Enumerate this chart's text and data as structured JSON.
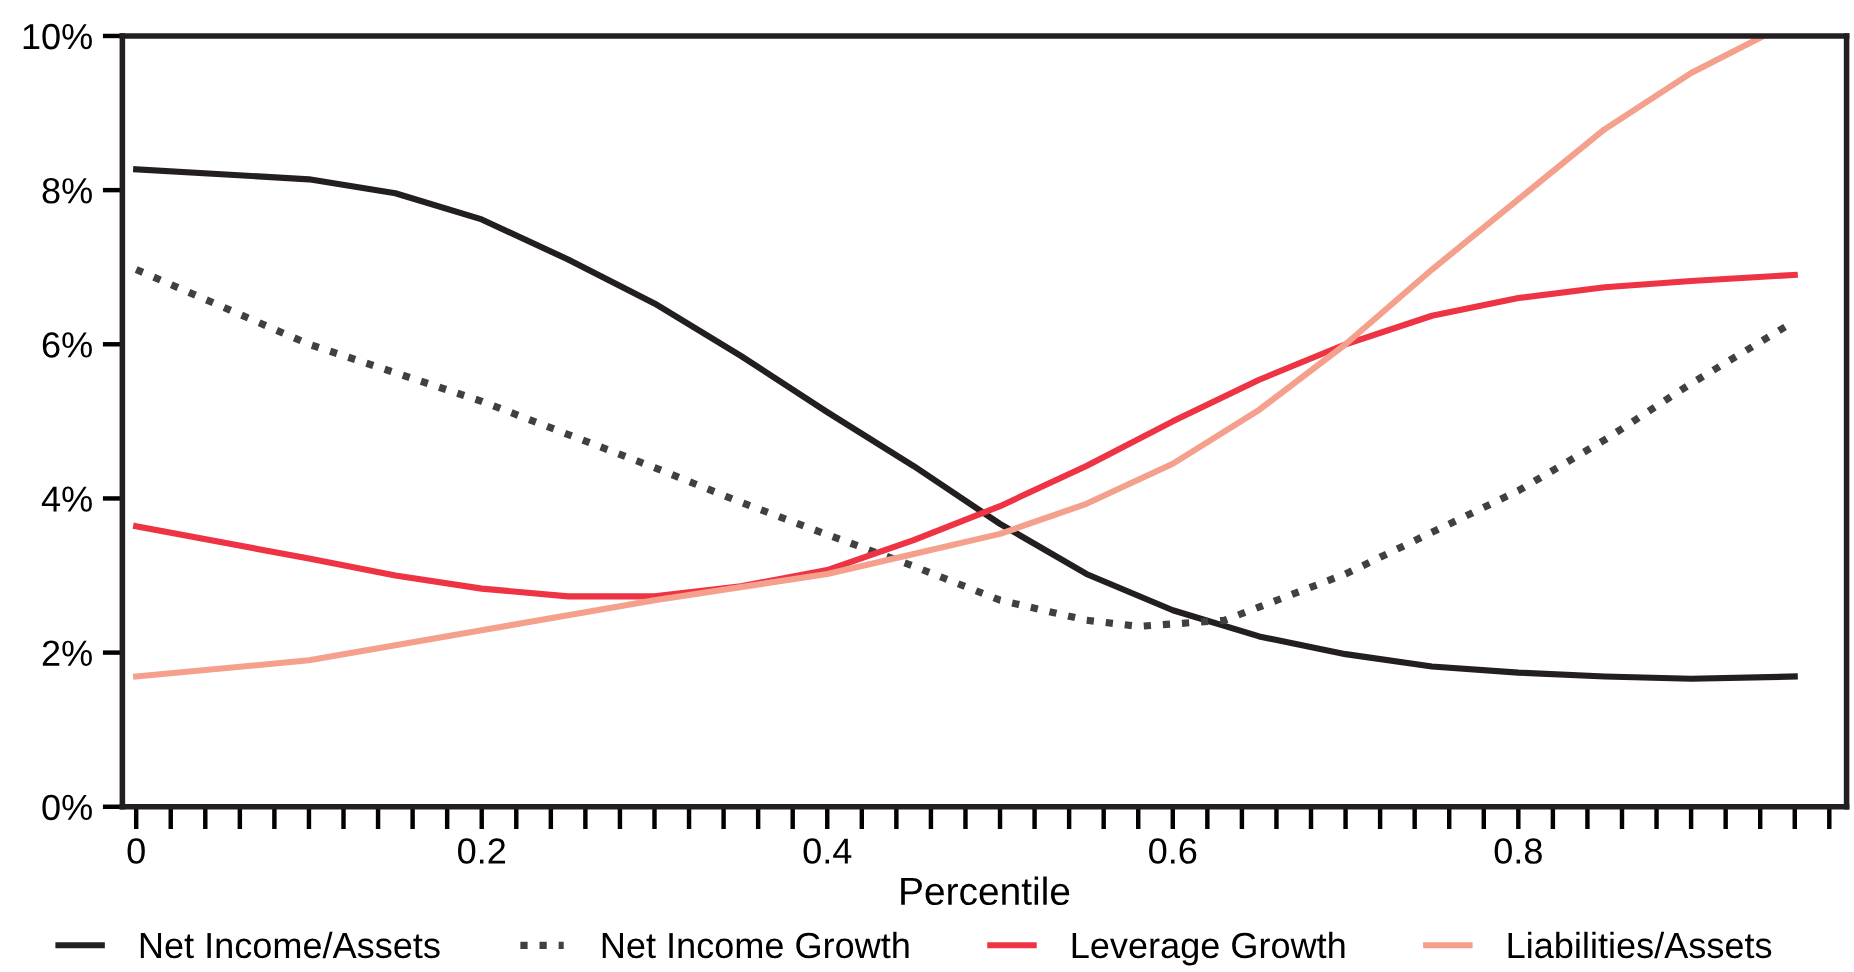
{
  "chart_data": {
    "type": "line",
    "xlabel": "Percentile",
    "xlim": [
      -0.008,
      0.99
    ],
    "ylim": [
      0,
      10
    ],
    "xticks": [
      0,
      {
        "value": 0.02,
        "label": null
      },
      {
        "value": 0.04,
        "label": null
      },
      {
        "value": 0.06,
        "label": null
      },
      {
        "value": 0.08,
        "label": null
      },
      {
        "value": 0.1,
        "label": null
      },
      {
        "value": 0.12,
        "label": null
      },
      {
        "value": 0.14,
        "label": null
      },
      {
        "value": 0.16,
        "label": null
      },
      {
        "value": 0.18,
        "label": null
      },
      0.2,
      {
        "value": 0.22,
        "label": null
      },
      {
        "value": 0.24,
        "label": null
      },
      {
        "value": 0.26,
        "label": null
      },
      {
        "value": 0.28,
        "label": null
      },
      {
        "value": 0.3,
        "label": null
      },
      {
        "value": 0.32,
        "label": null
      },
      {
        "value": 0.34,
        "label": null
      },
      {
        "value": 0.36,
        "label": null
      },
      {
        "value": 0.38,
        "label": null
      },
      0.4,
      {
        "value": 0.42,
        "label": null
      },
      {
        "value": 0.44,
        "label": null
      },
      {
        "value": 0.46,
        "label": null
      },
      {
        "value": 0.48,
        "label": null
      },
      {
        "value": 0.5,
        "label": null
      },
      {
        "value": 0.52,
        "label": null
      },
      {
        "value": 0.54,
        "label": null
      },
      {
        "value": 0.56,
        "label": null
      },
      {
        "value": 0.58,
        "label": null
      },
      0.6,
      {
        "value": 0.62,
        "label": null
      },
      {
        "value": 0.64,
        "label": null
      },
      {
        "value": 0.66,
        "label": null
      },
      {
        "value": 0.68,
        "label": null
      },
      {
        "value": 0.7,
        "label": null
      },
      {
        "value": 0.72,
        "label": null
      },
      {
        "value": 0.74,
        "label": null
      },
      {
        "value": 0.76,
        "label": null
      },
      {
        "value": 0.78,
        "label": null
      },
      0.8,
      {
        "value": 0.82,
        "label": null
      },
      {
        "value": 0.84,
        "label": null
      },
      {
        "value": 0.86,
        "label": null
      },
      {
        "value": 0.88,
        "label": null
      },
      {
        "value": 0.9,
        "label": null
      },
      {
        "value": 0.92,
        "label": null
      },
      {
        "value": 0.94,
        "label": null
      },
      {
        "value": 0.96,
        "label": null
      },
      {
        "value": 0.98,
        "label": null
      }
    ],
    "yticks": [
      {
        "value": 0,
        "label": "0%"
      },
      {
        "value": 2,
        "label": "2%"
      },
      {
        "value": 4,
        "label": "4%"
      },
      {
        "value": 6,
        "label": "6%"
      },
      {
        "value": 8,
        "label": "8%"
      },
      {
        "value": 10,
        "label": "10%"
      }
    ],
    "grid": false,
    "legend": "bottom",
    "marker": "none",
    "series": [
      {
        "name": "Net Income/Assets",
        "color": "#231f20",
        "line_style": "solid",
        "x": [
          0,
          0.1,
          0.15,
          0.2,
          0.25,
          0.3,
          0.35,
          0.4,
          0.45,
          0.5,
          0.55,
          0.6,
          0.65,
          0.7,
          0.75,
          0.8,
          0.85,
          0.9,
          0.96
        ],
        "values": [
          8.27,
          8.14,
          7.96,
          7.62,
          7.1,
          6.53,
          5.85,
          5.12,
          4.42,
          3.67,
          3.02,
          2.55,
          2.21,
          1.98,
          1.82,
          1.74,
          1.69,
          1.66,
          1.69
        ]
      },
      {
        "name": "Net Income Growth",
        "color": "#404040",
        "line_style": "dotted",
        "x": [
          0,
          0.1,
          0.2,
          0.3,
          0.35,
          0.4,
          0.45,
          0.5,
          0.55,
          0.58,
          0.63,
          0.7,
          0.75,
          0.8,
          0.85,
          0.9,
          0.96
        ],
        "values": [
          6.97,
          6.0,
          5.26,
          4.4,
          3.95,
          3.53,
          3.12,
          2.68,
          2.42,
          2.34,
          2.42,
          3.02,
          3.56,
          4.1,
          4.76,
          5.49,
          6.3
        ]
      },
      {
        "name": "Leverage Growth",
        "color": "#ee3344",
        "line_style": "solid",
        "x": [
          0,
          0.1,
          0.15,
          0.2,
          0.25,
          0.3,
          0.35,
          0.4,
          0.45,
          0.5,
          0.55,
          0.6,
          0.65,
          0.7,
          0.75,
          0.8,
          0.85,
          0.9,
          0.96
        ],
        "values": [
          3.64,
          3.22,
          3.0,
          2.83,
          2.73,
          2.73,
          2.86,
          3.07,
          3.46,
          3.9,
          4.42,
          5.0,
          5.54,
          6.0,
          6.37,
          6.6,
          6.74,
          6.82,
          6.9
        ]
      },
      {
        "name": "Liabilities/Assets",
        "color": "#f4a08c",
        "line_style": "solid",
        "x": [
          0,
          0.1,
          0.2,
          0.3,
          0.4,
          0.45,
          0.5,
          0.55,
          0.6,
          0.65,
          0.7,
          0.75,
          0.8,
          0.85,
          0.9,
          0.942
        ],
        "values": [
          1.69,
          1.9,
          2.29,
          2.68,
          3.02,
          3.28,
          3.54,
          3.93,
          4.45,
          5.15,
          6.0,
          6.97,
          7.88,
          8.79,
          9.52,
          10
        ]
      }
    ]
  }
}
